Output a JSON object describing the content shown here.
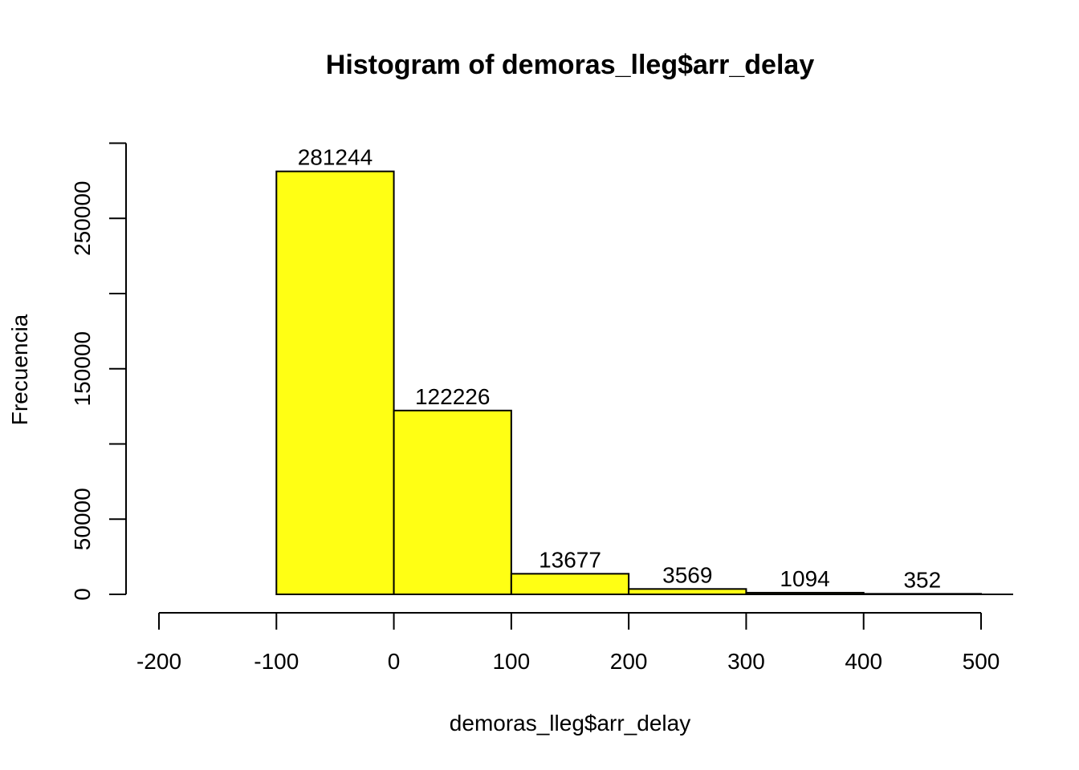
{
  "chart_data": {
    "type": "bar",
    "title": "Histogram of demoras_lleg$arr_delay",
    "xlabel": "demoras_lleg$arr_delay",
    "ylabel": "Frecuencia",
    "bins": [
      {
        "from": -100,
        "to": 0,
        "value": 281244,
        "label": "281244"
      },
      {
        "from": 0,
        "to": 100,
        "value": 122226,
        "label": "122226"
      },
      {
        "from": 100,
        "to": 200,
        "value": 13677,
        "label": "13677"
      },
      {
        "from": 200,
        "to": 300,
        "value": 3569,
        "label": "3569"
      },
      {
        "from": 300,
        "to": 400,
        "value": 1094,
        "label": "1094"
      },
      {
        "from": 400,
        "to": 500,
        "value": 352,
        "label": "352"
      }
    ],
    "xlim": [
      -200,
      500
    ],
    "ylim": [
      0,
      300000
    ],
    "x_ticks": [
      -200,
      -100,
      0,
      100,
      200,
      300,
      400,
      500
    ],
    "x_tick_labels": [
      "-200",
      "-100",
      "0",
      "100",
      "200",
      "300",
      "400",
      "500"
    ],
    "y_ticks": [
      0,
      50000,
      100000,
      150000,
      200000,
      250000,
      300000
    ],
    "y_tick_labels": [
      "0",
      "50000",
      "",
      "150000",
      "",
      "250000",
      ""
    ],
    "bar_color": "#ffff14",
    "grid": false,
    "legend": "none"
  }
}
